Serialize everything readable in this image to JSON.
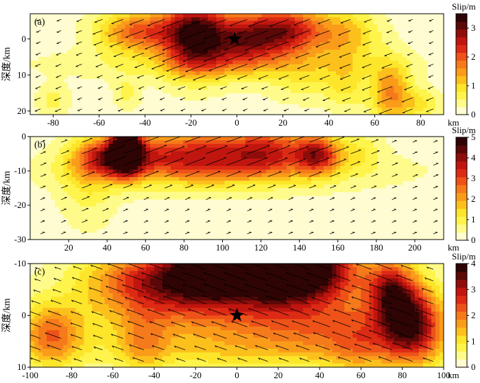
{
  "chart_data": [
    {
      "type": "heatmap",
      "panel_label": "(a)",
      "ylabel": "深度/km",
      "xunit": "km",
      "xlim": [
        -90,
        90
      ],
      "ylim": [
        -7,
        21
      ],
      "xticks": [
        -80,
        -60,
        -40,
        -20,
        0,
        20,
        40,
        60,
        80
      ],
      "yticks": [
        0,
        10,
        20
      ],
      "colorbar": {
        "title": "Slip/m",
        "max": 3.5,
        "ticks": [
          0,
          1,
          2,
          3
        ]
      },
      "epicenter": {
        "x": -1,
        "y": 0
      },
      "slip_patches": [
        {
          "x": -18,
          "y": -1,
          "sx": 10,
          "sy": 7,
          "slip": 3.2
        },
        {
          "x": 20,
          "y": -2,
          "sx": 13,
          "sy": 5,
          "slip": 2.6
        },
        {
          "x": -43,
          "y": -2,
          "sx": 12,
          "sy": 4,
          "slip": 1.8
        },
        {
          "x": 2,
          "y": 1,
          "sx": 10,
          "sy": 5,
          "slip": 1.6
        },
        {
          "x": 48,
          "y": -1,
          "sx": 10,
          "sy": 5,
          "slip": 1.0
        },
        {
          "x": 67,
          "y": 15,
          "sx": 6,
          "sy": 6,
          "slip": 1.5
        },
        {
          "x": -5,
          "y": 7,
          "sx": 50,
          "sy": 3,
          "slip": 0.55
        },
        {
          "x": 30,
          "y": 12,
          "sx": 12,
          "sy": 4,
          "slip": 0.5
        },
        {
          "x": -80,
          "y": 17,
          "sx": 5,
          "sy": 3,
          "slip": 0.5
        },
        {
          "x": -48,
          "y": 15,
          "sx": 4,
          "sy": 3,
          "slip": 0.5
        },
        {
          "x": 48,
          "y": 13,
          "sx": 6,
          "sy": 5,
          "slip": 0.6
        },
        {
          "x": 80,
          "y": 18,
          "sx": 6,
          "sy": 3,
          "slip": 0.7
        }
      ],
      "rake_deg": 200
    },
    {
      "type": "heatmap",
      "panel_label": "(b)",
      "ylabel": "深度/km",
      "xunit": "km",
      "xlim": [
        0,
        215
      ],
      "ylim": [
        0,
        -30
      ],
      "xticks": [
        20,
        40,
        60,
        80,
        100,
        120,
        140,
        160,
        180,
        200
      ],
      "yticks": [
        0,
        -10,
        -20,
        -30
      ],
      "colorbar": {
        "title": "Slip/m",
        "max": 5,
        "ticks": [
          0,
          1,
          2,
          3,
          4,
          5
        ]
      },
      "epicenter": null,
      "slip_patches": [
        {
          "x": 50,
          "y": -3,
          "sx": 5,
          "sy": 5,
          "slip": 4.8
        },
        {
          "x": 43,
          "y": -6,
          "sx": 13,
          "sy": 4,
          "slip": 3.2
        },
        {
          "x": 85,
          "y": -5,
          "sx": 25,
          "sy": 5,
          "slip": 3.0
        },
        {
          "x": 125,
          "y": -4,
          "sx": 15,
          "sy": 5,
          "slip": 2.4
        },
        {
          "x": 150,
          "y": -5,
          "sx": 8,
          "sy": 4,
          "slip": 3.0
        },
        {
          "x": 100,
          "y": -10,
          "sx": 60,
          "sy": 4,
          "slip": 0.9
        },
        {
          "x": 30,
          "y": -14,
          "sx": 10,
          "sy": 8,
          "slip": 0.8
        },
        {
          "x": 172,
          "y": -4,
          "sx": 8,
          "sy": 4,
          "slip": 0.8
        }
      ],
      "rake_deg": 20
    },
    {
      "type": "heatmap",
      "panel_label": "(c)",
      "ylabel": "深度/km",
      "xunit": "km",
      "xlim": [
        -100,
        100
      ],
      "ylim": [
        -10,
        10
      ],
      "xticks": [
        -100,
        -80,
        -60,
        -40,
        -20,
        0,
        20,
        40,
        60,
        80,
        100
      ],
      "yticks": [
        -10,
        0,
        10
      ],
      "colorbar": {
        "title": "Slip/m",
        "max": 4,
        "ticks": [
          0,
          1,
          2,
          3,
          4
        ]
      },
      "epicenter": {
        "x": 0,
        "y": 0
      },
      "slip_patches": [
        {
          "x": 27,
          "y": -10,
          "sx": 18,
          "sy": 4,
          "slip": 4.0
        },
        {
          "x": -12,
          "y": -10,
          "sx": 10,
          "sy": 3,
          "slip": 3.5
        },
        {
          "x": 10,
          "y": -7,
          "sx": 35,
          "sy": 4,
          "slip": 2.4
        },
        {
          "x": -35,
          "y": -7,
          "sx": 25,
          "sy": 4,
          "slip": 2.2
        },
        {
          "x": 84,
          "y": 2,
          "sx": 11,
          "sy": 5,
          "slip": 3.3
        },
        {
          "x": 75,
          "y": -5,
          "sx": 8,
          "sy": 4,
          "slip": 2.2
        },
        {
          "x": -90,
          "y": 4,
          "sx": 10,
          "sy": 4,
          "slip": 1.7
        },
        {
          "x": -10,
          "y": 0,
          "sx": 50,
          "sy": 4,
          "slip": 1.3
        },
        {
          "x": 40,
          "y": 2,
          "sx": 25,
          "sy": 4,
          "slip": 1.0
        },
        {
          "x": -45,
          "y": 5,
          "sx": 8,
          "sy": 4,
          "slip": 0.9
        },
        {
          "x": 58,
          "y": 6,
          "sx": 10,
          "sy": 4,
          "slip": 0.9
        },
        {
          "x": 0,
          "y": 7,
          "sx": 60,
          "sy": 3,
          "slip": 0.8
        }
      ],
      "rake_deg": 160
    }
  ]
}
